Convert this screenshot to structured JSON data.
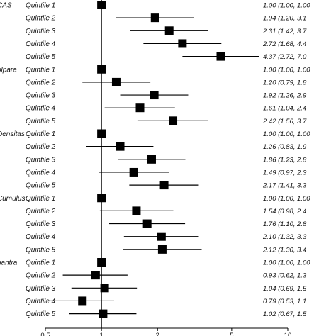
{
  "chart_data": {
    "type": "forest",
    "xscale": "log",
    "xlim": [
      0.5,
      10
    ],
    "reference_line": 1,
    "xticks": [
      "0.5",
      "1",
      "2",
      "5",
      "10"
    ],
    "groups": [
      {
        "label": "CAS",
        "rows": [
          {
            "label": "Quintile 1",
            "or": 1.0,
            "lo": 1.0,
            "hi": 1.0,
            "text": "1.00 (1.00, 1.00"
          },
          {
            "label": "Quintile 2",
            "or": 1.94,
            "lo": 1.2,
            "hi": 3.13,
            "text": "1.94 (1.20, 3.1"
          },
          {
            "label": "Quintile 3",
            "or": 2.31,
            "lo": 1.42,
            "hi": 3.74,
            "text": "2.31 (1.42, 3.7"
          },
          {
            "label": "Quintile 4",
            "or": 2.72,
            "lo": 1.68,
            "hi": 4.4,
            "text": "2.72 (1.68, 4.4"
          },
          {
            "label": "Quintile 5",
            "or": 4.37,
            "lo": 2.72,
            "hi": 7.02,
            "text": "4.37 (2.72, 7.0"
          }
        ]
      },
      {
        "label": "olpara",
        "rows": [
          {
            "label": "Quintile 1",
            "or": 1.0,
            "lo": 1.0,
            "hi": 1.0,
            "text": "1.00 (1.00, 1.00"
          },
          {
            "label": "Quintile 2",
            "or": 1.2,
            "lo": 0.79,
            "hi": 1.83,
            "text": "1.20 (0.79, 1.8"
          },
          {
            "label": "Quintile 3",
            "or": 1.92,
            "lo": 1.26,
            "hi": 2.92,
            "text": "1.92 (1.26, 2.9"
          },
          {
            "label": "Quintile 4",
            "or": 1.61,
            "lo": 1.04,
            "hi": 2.48,
            "text": "1.61 (1.04, 2.4"
          },
          {
            "label": "Quintile 5",
            "or": 2.42,
            "lo": 1.56,
            "hi": 3.75,
            "text": "2.42 (1.56, 3.7"
          }
        ]
      },
      {
        "label": "Densitas",
        "rows": [
          {
            "label": "Quintile 1",
            "or": 1.0,
            "lo": 1.0,
            "hi": 1.0,
            "text": "1.00 (1.00, 1.00"
          },
          {
            "label": "Quintile 2",
            "or": 1.26,
            "lo": 0.83,
            "hi": 1.9,
            "text": "1.26 (0.83, 1.9"
          },
          {
            "label": "Quintile 3",
            "or": 1.86,
            "lo": 1.23,
            "hi": 2.82,
            "text": "1.86 (1.23, 2.8"
          },
          {
            "label": "Quintile 4",
            "or": 1.49,
            "lo": 0.97,
            "hi": 2.3,
            "text": "1.49 (0.97, 2.3"
          },
          {
            "label": "Quintile 5",
            "or": 2.17,
            "lo": 1.41,
            "hi": 3.33,
            "text": "2.17 (1.41, 3.3"
          }
        ]
      },
      {
        "label": "Cumulus",
        "rows": [
          {
            "label": "Quintile 1",
            "or": 1.0,
            "lo": 1.0,
            "hi": 1.0,
            "text": "1.00 (1.00, 1.00"
          },
          {
            "label": "Quintile 2",
            "or": 1.54,
            "lo": 0.98,
            "hi": 2.43,
            "text": "1.54 (0.98, 2.4"
          },
          {
            "label": "Quintile 3",
            "or": 1.76,
            "lo": 1.1,
            "hi": 2.81,
            "text": "1.76 (1.10, 2.8"
          },
          {
            "label": "Quintile 4",
            "or": 2.1,
            "lo": 1.32,
            "hi": 3.33,
            "text": "2.10 (1.32, 3.3"
          },
          {
            "label": "Quintile 5",
            "or": 2.12,
            "lo": 1.3,
            "hi": 3.45,
            "text": "2.12 (1.30, 3.4"
          }
        ]
      },
      {
        "label": "uantra",
        "rows": [
          {
            "label": "Quintile 1",
            "or": 1.0,
            "lo": 1.0,
            "hi": 1.0,
            "text": "1.00 (1.00, 1.00"
          },
          {
            "label": "Quintile 2",
            "or": 0.93,
            "lo": 0.62,
            "hi": 1.38,
            "text": "0.93 (0.62, 1.3"
          },
          {
            "label": "Quintile 3",
            "or": 1.04,
            "lo": 0.69,
            "hi": 1.55,
            "text": "1.04 (0.69, 1.5"
          },
          {
            "label": "Quintile 4",
            "or": 0.79,
            "lo": 0.53,
            "hi": 1.17,
            "text": "0.79 (0.53, 1.1"
          },
          {
            "label": "Quintile 5",
            "or": 1.02,
            "lo": 0.67,
            "hi": 1.54,
            "text": "1.02 (0.67, 1.5"
          }
        ]
      }
    ]
  }
}
